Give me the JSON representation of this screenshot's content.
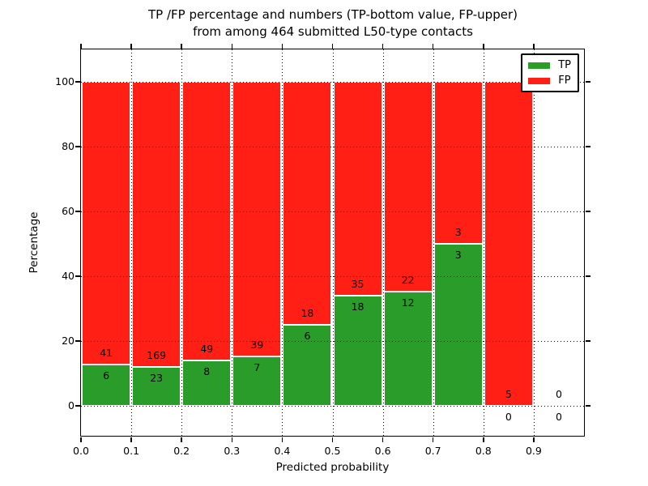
{
  "title": {
    "line1": "TP /FP percentage and numbers (TP-bottom value, FP-upper)",
    "line2": "from among 464 submitted L50-type contacts"
  },
  "chart_data": {
    "type": "bar",
    "stacked": true,
    "normalized": "each bin stack scaled to 100 percent",
    "xlabel": "Predicted probability",
    "ylabel": "Percentage",
    "xlim": [
      0.0,
      1.0
    ],
    "ylim": [
      -10,
      110
    ],
    "grid": "dotted",
    "legend_position": "upper right",
    "x_ticks": [
      0.0,
      0.1,
      0.2,
      0.3,
      0.4,
      0.5,
      0.6,
      0.7,
      0.8,
      0.9
    ],
    "x_tick_labels": [
      "0.0",
      "0.1",
      "0.2",
      "0.3",
      "0.4",
      "0.5",
      "0.6",
      "0.7",
      "0.8",
      "0.9"
    ],
    "y_ticks": [
      0,
      20,
      40,
      60,
      80,
      100
    ],
    "y_tick_labels": [
      "0",
      "20",
      "40",
      "60",
      "80",
      "100"
    ],
    "series": [
      {
        "name": "TP",
        "color": "#2a9c2a"
      },
      {
        "name": "FP",
        "color": "#ff1f14"
      }
    ],
    "bins": [
      {
        "range": [
          0.0,
          0.1
        ],
        "tp": 6,
        "fp": 41
      },
      {
        "range": [
          0.1,
          0.2
        ],
        "tp": 23,
        "fp": 169
      },
      {
        "range": [
          0.2,
          0.3
        ],
        "tp": 8,
        "fp": 49
      },
      {
        "range": [
          0.3,
          0.4
        ],
        "tp": 7,
        "fp": 39
      },
      {
        "range": [
          0.4,
          0.5
        ],
        "tp": 6,
        "fp": 18
      },
      {
        "range": [
          0.5,
          0.6
        ],
        "tp": 18,
        "fp": 35
      },
      {
        "range": [
          0.6,
          0.7
        ],
        "tp": 12,
        "fp": 22
      },
      {
        "range": [
          0.7,
          0.8
        ],
        "tp": 3,
        "fp": 3
      },
      {
        "range": [
          0.8,
          0.9
        ],
        "tp": 0,
        "fp": 5
      },
      {
        "range": [
          0.9,
          1.0
        ],
        "tp": 0,
        "fp": 0
      }
    ]
  }
}
